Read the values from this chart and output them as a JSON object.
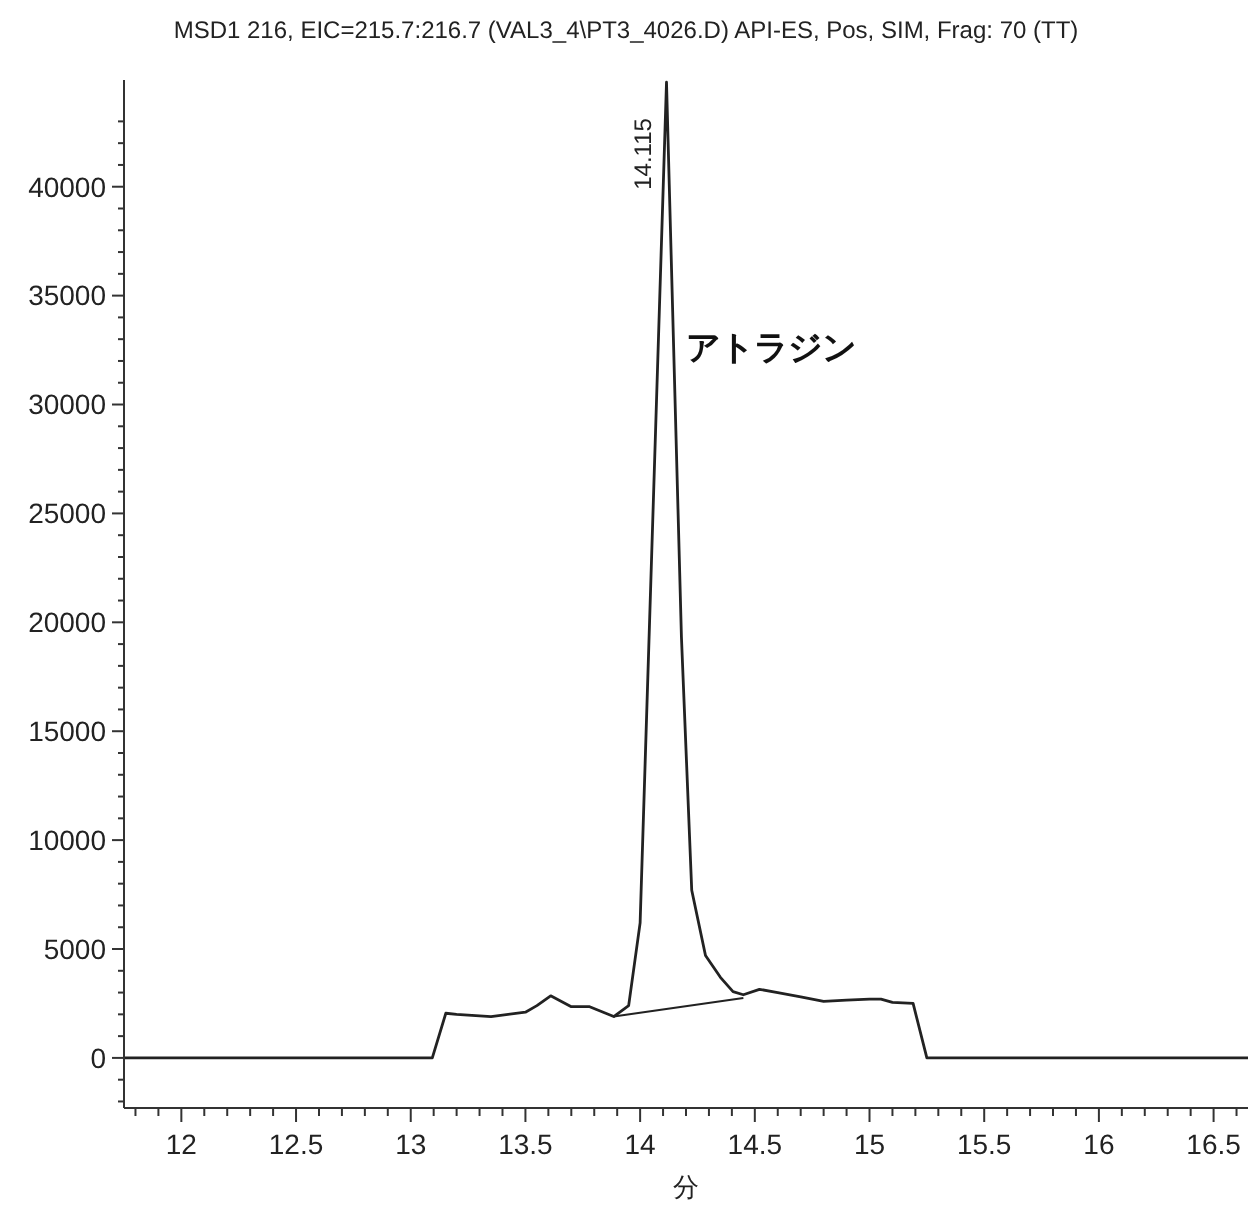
{
  "chart_data": {
    "type": "line",
    "title": "MSD1 216, EIC=215.7:216.7 (VAL3_4\\PT3_4026.D) API-ES, Pos, SIM, Frag: 70 (TT)",
    "xlabel": "分",
    "x": [
      11.75,
      13.094,
      13.153,
      13.2,
      13.35,
      13.5,
      13.55,
      13.61,
      13.7,
      13.78,
      13.885,
      13.95,
      14.0,
      14.115,
      14.18,
      14.225,
      14.285,
      14.35,
      14.405,
      14.45,
      14.52,
      14.6,
      14.7,
      14.8,
      14.9,
      15.0,
      15.05,
      15.1,
      15.19,
      15.25,
      16.65
    ],
    "series": [
      {
        "color": "#222222",
        "values": [
          0,
          0,
          2050,
          2000,
          1900,
          2100,
          2400,
          2850,
          2350,
          2350,
          1900,
          2400,
          6200,
          44800,
          19350,
          7700,
          4700,
          3700,
          3040,
          2900,
          3150,
          3000,
          2800,
          2600,
          2650,
          2700,
          2700,
          2550,
          2500,
          0,
          0
        ]
      },
      {
        "color": "#222222",
        "x": [
          13.885,
          14.45
        ],
        "values": [
          1900,
          2750
        ]
      }
    ],
    "xlim": [
      11.75,
      16.65
    ],
    "ylim": [
      -2300,
      44900
    ],
    "xticks": [
      {
        "value": 11.8,
        "label": null
      },
      {
        "value": 11.9,
        "label": null
      },
      {
        "value": 12,
        "label": "12"
      },
      {
        "value": 12.1,
        "label": null
      },
      {
        "value": 12.2,
        "label": null
      },
      {
        "value": 12.3,
        "label": null
      },
      {
        "value": 12.4,
        "label": null
      },
      {
        "value": 12.5,
        "label": "12.5"
      },
      {
        "value": 12.6,
        "label": null
      },
      {
        "value": 12.7,
        "label": null
      },
      {
        "value": 12.8,
        "label": null
      },
      {
        "value": 12.9,
        "label": null
      },
      {
        "value": 13,
        "label": "13"
      },
      {
        "value": 13.1,
        "label": null
      },
      {
        "value": 13.2,
        "label": null
      },
      {
        "value": 13.3,
        "label": null
      },
      {
        "value": 13.4,
        "label": null
      },
      {
        "value": 13.5,
        "label": "13.5"
      },
      {
        "value": 13.6,
        "label": null
      },
      {
        "value": 13.7,
        "label": null
      },
      {
        "value": 13.8,
        "label": null
      },
      {
        "value": 13.9,
        "label": null
      },
      {
        "value": 14,
        "label": "14"
      },
      {
        "value": 14.1,
        "label": null
      },
      {
        "value": 14.2,
        "label": null
      },
      {
        "value": 14.3,
        "label": null
      },
      {
        "value": 14.4,
        "label": null
      },
      {
        "value": 14.5,
        "label": "14.5"
      },
      {
        "value": 14.6,
        "label": null
      },
      {
        "value": 14.7,
        "label": null
      },
      {
        "value": 14.8,
        "label": null
      },
      {
        "value": 14.9,
        "label": null
      },
      {
        "value": 15,
        "label": "15"
      },
      {
        "value": 15.1,
        "label": null
      },
      {
        "value": 15.2,
        "label": null
      },
      {
        "value": 15.3,
        "label": null
      },
      {
        "value": 15.4,
        "label": null
      },
      {
        "value": 15.5,
        "label": "15.5"
      },
      {
        "value": 15.6,
        "label": null
      },
      {
        "value": 15.7,
        "label": null
      },
      {
        "value": 15.8,
        "label": null
      },
      {
        "value": 15.9,
        "label": null
      },
      {
        "value": 16,
        "label": "16"
      },
      {
        "value": 16.1,
        "label": null
      },
      {
        "value": 16.2,
        "label": null
      },
      {
        "value": 16.3,
        "label": null
      },
      {
        "value": 16.4,
        "label": null
      },
      {
        "value": 16.5,
        "label": "16.5"
      },
      {
        "value": 16.6,
        "label": null
      }
    ],
    "yticks": [
      {
        "value": -2000,
        "label": null
      },
      {
        "value": -1000,
        "label": null
      },
      0,
      {
        "value": 1000,
        "label": null
      },
      {
        "value": 2000,
        "label": null
      },
      {
        "value": 3000,
        "label": null
      },
      {
        "value": 4000,
        "label": null
      },
      5000,
      {
        "value": 6000,
        "label": null
      },
      {
        "value": 7000,
        "label": null
      },
      {
        "value": 8000,
        "label": null
      },
      {
        "value": 9000,
        "label": null
      },
      10000,
      {
        "value": 11000,
        "label": null
      },
      {
        "value": 12000,
        "label": null
      },
      {
        "value": 13000,
        "label": null
      },
      {
        "value": 14000,
        "label": null
      },
      15000,
      {
        "value": 16000,
        "label": null
      },
      {
        "value": 17000,
        "label": null
      },
      {
        "value": 18000,
        "label": null
      },
      {
        "value": 19000,
        "label": null
      },
      20000,
      {
        "value": 21000,
        "label": null
      },
      {
        "value": 22000,
        "label": null
      },
      {
        "value": 23000,
        "label": null
      },
      {
        "value": 24000,
        "label": null
      },
      25000,
      {
        "value": 26000,
        "label": null
      },
      {
        "value": 27000,
        "label": null
      },
      {
        "value": 28000,
        "label": null
      },
      {
        "value": 29000,
        "label": null
      },
      30000,
      {
        "value": 31000,
        "label": null
      },
      {
        "value": 32000,
        "label": null
      },
      {
        "value": 33000,
        "label": null
      },
      {
        "value": 34000,
        "label": null
      },
      35000,
      {
        "value": 36000,
        "label": null
      },
      {
        "value": 37000,
        "label": null
      },
      {
        "value": 38000,
        "label": null
      },
      {
        "value": 39000,
        "label": null
      },
      40000,
      {
        "value": 41000,
        "label": null
      },
      {
        "value": 42000,
        "label": null
      },
      {
        "value": 43000,
        "label": null
      }
    ],
    "annotations": [
      {
        "text": "14.115",
        "x": 14.115,
        "y": 44800
      },
      "アトラジン"
    ]
  }
}
